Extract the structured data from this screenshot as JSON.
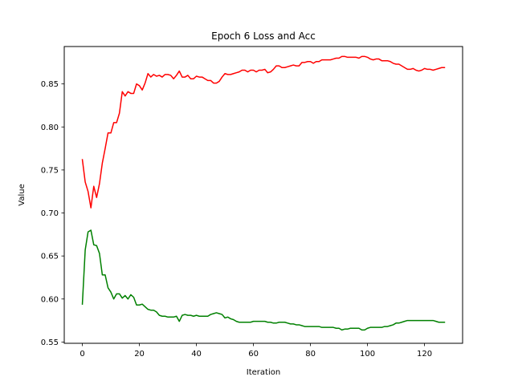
{
  "chart_data": {
    "type": "line",
    "title": "Epoch 6 Loss and Acc",
    "xlabel": "Iteration",
    "ylabel": "Value",
    "xlim": [
      -6.35,
      133.35
    ],
    "ylim": [
      0.5485,
      0.8935
    ],
    "xticks": [
      0,
      20,
      40,
      60,
      80,
      100,
      120
    ],
    "yticks": [
      0.55,
      0.6,
      0.65,
      0.7,
      0.75,
      0.8,
      0.85
    ],
    "ytick_labels": [
      "0.55",
      "0.60",
      "0.65",
      "0.70",
      "0.75",
      "0.80",
      "0.85"
    ],
    "grid": false,
    "series": [
      {
        "color": "#ff0000",
        "values": [
          0.762,
          0.736,
          0.725,
          0.706,
          0.731,
          0.718,
          0.734,
          0.758,
          0.775,
          0.793,
          0.793,
          0.805,
          0.805,
          0.816,
          0.841,
          0.836,
          0.841,
          0.839,
          0.839,
          0.85,
          0.848,
          0.843,
          0.851,
          0.862,
          0.858,
          0.861,
          0.859,
          0.86,
          0.858,
          0.861,
          0.861,
          0.86,
          0.856,
          0.86,
          0.865,
          0.858,
          0.858,
          0.86,
          0.856,
          0.856,
          0.859,
          0.858,
          0.858,
          0.856,
          0.854,
          0.854,
          0.851,
          0.851,
          0.853,
          0.858,
          0.862,
          0.861,
          0.861,
          0.862,
          0.863,
          0.864,
          0.866,
          0.866,
          0.864,
          0.866,
          0.866,
          0.864,
          0.866,
          0.866,
          0.867,
          0.863,
          0.864,
          0.867,
          0.871,
          0.871,
          0.869,
          0.869,
          0.87,
          0.871,
          0.872,
          0.871,
          0.871,
          0.875,
          0.875,
          0.876,
          0.876,
          0.874,
          0.876,
          0.876,
          0.878,
          0.878,
          0.878,
          0.878,
          0.879,
          0.88,
          0.88,
          0.882,
          0.882,
          0.881,
          0.881,
          0.881,
          0.881,
          0.88,
          0.882,
          0.882,
          0.881,
          0.879,
          0.878,
          0.879,
          0.879,
          0.877,
          0.877,
          0.877,
          0.876,
          0.874,
          0.873,
          0.873,
          0.871,
          0.869,
          0.867,
          0.867,
          0.868,
          0.866,
          0.865,
          0.866,
          0.868,
          0.867,
          0.867,
          0.866,
          0.867,
          0.868,
          0.869,
          0.869
        ]
      },
      {
        "color": "#008000",
        "values": [
          0.594,
          0.657,
          0.678,
          0.68,
          0.663,
          0.662,
          0.653,
          0.628,
          0.628,
          0.613,
          0.608,
          0.6,
          0.606,
          0.606,
          0.601,
          0.604,
          0.6,
          0.605,
          0.602,
          0.593,
          0.593,
          0.594,
          0.591,
          0.588,
          0.587,
          0.587,
          0.585,
          0.581,
          0.58,
          0.58,
          0.579,
          0.579,
          0.579,
          0.58,
          0.574,
          0.581,
          0.582,
          0.581,
          0.581,
          0.58,
          0.581,
          0.58,
          0.58,
          0.58,
          0.58,
          0.582,
          0.583,
          0.584,
          0.583,
          0.582,
          0.578,
          0.579,
          0.577,
          0.576,
          0.574,
          0.573,
          0.573,
          0.573,
          0.573,
          0.573,
          0.574,
          0.574,
          0.574,
          0.574,
          0.574,
          0.573,
          0.573,
          0.572,
          0.572,
          0.573,
          0.573,
          0.573,
          0.572,
          0.571,
          0.571,
          0.57,
          0.57,
          0.569,
          0.568,
          0.568,
          0.568,
          0.568,
          0.568,
          0.568,
          0.567,
          0.567,
          0.567,
          0.567,
          0.567,
          0.566,
          0.566,
          0.564,
          0.565,
          0.565,
          0.566,
          0.566,
          0.566,
          0.566,
          0.564,
          0.564,
          0.566,
          0.567,
          0.567,
          0.567,
          0.567,
          0.567,
          0.568,
          0.568,
          0.569,
          0.57,
          0.572,
          0.572,
          0.573,
          0.574,
          0.575,
          0.575,
          0.575,
          0.575,
          0.575,
          0.575,
          0.575,
          0.575,
          0.575,
          0.575,
          0.574,
          0.573,
          0.573,
          0.573
        ]
      }
    ]
  }
}
